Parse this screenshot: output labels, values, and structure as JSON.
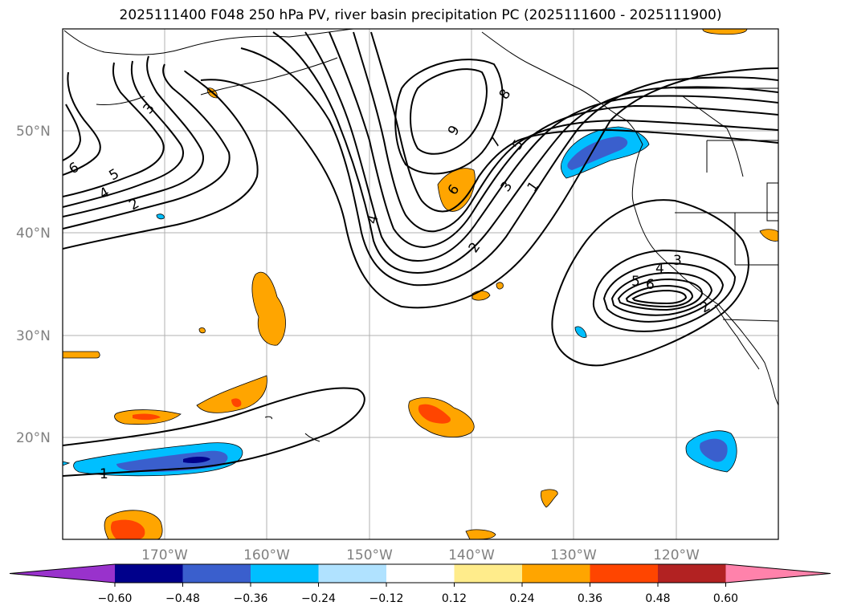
{
  "title": "2025111400 F048 250 hPa PV, river basin precipitation PC (2025111600 - 2025111900)",
  "map": {
    "lat_labels": [
      "50°N",
      "40°N",
      "30°N",
      "20°N"
    ],
    "lon_labels": [
      "170°W",
      "160°W",
      "150°W",
      "140°W",
      "130°W",
      "120°W"
    ]
  },
  "contour_labels": [
    "3",
    "6",
    "5",
    "4",
    "2",
    "9",
    "8",
    "7",
    "5",
    "3",
    "1",
    "6",
    "4",
    "2",
    "3",
    "4",
    "5",
    "6",
    "2",
    "1"
  ],
  "colorbar": {
    "colors": [
      "#9932cc",
      "#00008b",
      "#3a5fcd",
      "#00bfff",
      "#b0e2ff",
      "#ffffff",
      "#ffec8b",
      "#ffa500",
      "#ff4500",
      "#b22222",
      "#ff82ab"
    ],
    "tick_labels": [
      "−0.60",
      "−0.48",
      "−0.36",
      "−0.24",
      "−0.12",
      "0.12",
      "0.24",
      "0.36",
      "0.48",
      "0.60"
    ]
  }
}
